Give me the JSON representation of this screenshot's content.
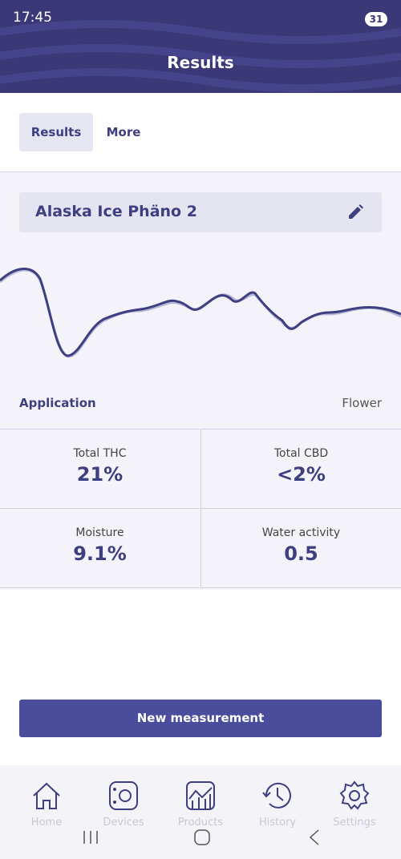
{
  "status_bar": {
    "time": "17:45",
    "battery": "31"
  },
  "header": {
    "title": "Results"
  },
  "tabs": [
    "Results",
    "More"
  ],
  "sample": {
    "name": "Alaska Ice Phäno 2",
    "application_label": "Application",
    "application_value": "Flower"
  },
  "metrics": [
    {
      "label": "Total THC",
      "value": "21%"
    },
    {
      "label": "Total CBD",
      "value": "<2%"
    },
    {
      "label": "Moisture",
      "value": "9.1%"
    },
    {
      "label": "Water activity",
      "value": "0.5"
    }
  ],
  "button": "New measurement",
  "nav": [
    "Home",
    "Devices",
    "Products",
    "History",
    "Settings"
  ]
}
